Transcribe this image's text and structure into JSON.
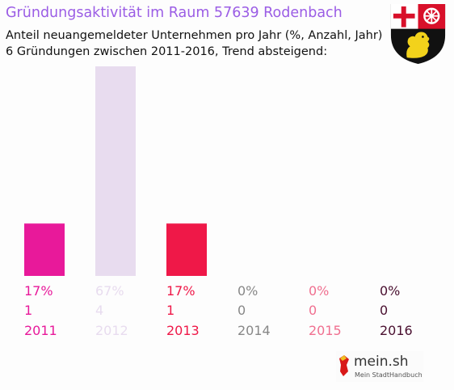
{
  "header": {
    "title": "Gründungsaktivität im Raum 57639 Rodenbach",
    "subtitle_line1": "Anteil neuangemeldeter Unternehmen pro Jahr (%, Anzahl, Jahr)",
    "subtitle_line2": "6 Gründungen zwischen 2011-2016, Trend absteigend:"
  },
  "branding": {
    "logo_text": "mein.sh",
    "logo_subtitle": "Mein StadtHandbuch",
    "crest_icon": "rhineland-palatinate-coat-of-arms-icon"
  },
  "chart_data": {
    "type": "bar",
    "categories": [
      "2011",
      "2012",
      "2013",
      "2014",
      "2015",
      "2016"
    ],
    "values": [
      1,
      4,
      1,
      0,
      0,
      0
    ],
    "percent_labels": [
      "17%",
      "67%",
      "17%",
      "0%",
      "0%",
      "0%"
    ],
    "count_labels": [
      "1",
      "4",
      "1",
      "0",
      "0",
      "0"
    ],
    "colors": [
      "#e8199a",
      "#e8dcef",
      "#ef1848",
      "#888888",
      "#f07090",
      "#4a1030"
    ],
    "ylim": [
      0,
      4
    ],
    "grid": false,
    "legend": "none"
  }
}
